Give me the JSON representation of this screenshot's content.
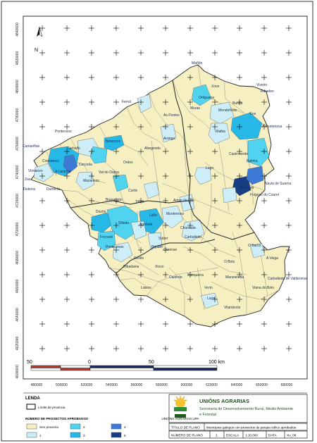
{
  "map": {
    "y_ticks": [
      "4840000",
      "4820000",
      "4800000",
      "4780000",
      "4760000",
      "4740000",
      "4720000",
      "4700000",
      "4680000",
      "4660000",
      "4640000",
      "4620000",
      "4600000"
    ],
    "x_ticks": [
      "480000",
      "500000",
      "520000",
      "540000",
      "560000",
      "580000",
      "600000",
      "620000",
      "640000",
      "660000",
      "680000"
    ],
    "north": "N",
    "towns": [
      "Mañón",
      "Ferrol",
      "Ortigueira",
      "Ribadeo",
      "Burela",
      "Foz",
      "A Pontenova",
      "As Pontes",
      "Muras",
      "Mondoñedo",
      "Vilalba",
      "Camariñas",
      "Ponteceso",
      "Carballo",
      "Coristanco",
      "A Laracha",
      "Cerceda",
      "Ordes",
      "Abegondo",
      "Betanzos",
      "Aranga",
      "Curtis",
      "Zas",
      "Vimianzo",
      "Fisterra",
      "Dumbría",
      "Mazaricos",
      "Val do Dubra",
      "Boqueixón",
      "Touro",
      "Lugo",
      "Castroverde",
      "Baleira",
      "Becerreá",
      "Navia de Suarna",
      "Folgoso do Courel",
      "Lalín",
      "Dozón",
      "Silleda",
      "Forcarei",
      "Agolada",
      "Antas de Ulla",
      "Monterroso",
      "Chantada",
      "Carballedo",
      "Sober",
      "Pantón",
      "Ponteareas",
      "Ribadavia",
      "O Barco",
      "A Veiga",
      "Xinzo",
      "Verín",
      "Lobios",
      "Laza",
      "Castrelo",
      "Cenlle",
      "Ourense",
      "Xunqueira",
      "Vilardevós",
      "Carballeda de Valdeorras",
      "O Bolo",
      "Manzaneda",
      "Viana do Bolo",
      "Viveiro",
      "Xove"
    ],
    "scale": {
      "labels": [
        "50",
        "0",
        "50",
        "100 km"
      ]
    }
  },
  "legend": {
    "title": "LENDA",
    "boundary": "Límite de provincia",
    "count_title": "NÚMERO DE PROXECTOS APROBADOS",
    "classes": [
      {
        "label": "Sen proxecto",
        "color": "#f6efc2"
      },
      {
        "label": "1",
        "color": "#cdeef6"
      },
      {
        "label": "2",
        "color": "#4fd3ee"
      },
      {
        "label": "3",
        "color": "#26b9e8"
      },
      {
        "label": "4",
        "color": "#3c7ad6"
      },
      {
        "label": "5",
        "color": "#173d82"
      }
    ]
  },
  "org": {
    "logo_text": "UNIÓNS AGRARIAS UPA",
    "name": "UNIÓNS AGRARIAS",
    "line1": "Secretaría de Desenvolvemento Rural, Medio Ambiente",
    "line2": "e Forestal"
  },
  "info": {
    "title_label": "TÍTULO DE PLANO",
    "title_value": "Municipios galegos con proxectos de parque eólico aprobados",
    "num_label": "NÚMERO DE PLANO",
    "num_value": "1",
    "scale_label": "ESCALA",
    "scale_value": "1:10.000",
    "date_label": "DATA",
    "date_value": "Xu_08"
  },
  "colors": {
    "land": "#f6efc2",
    "border": "#7a7a7a",
    "province": "#222222"
  }
}
